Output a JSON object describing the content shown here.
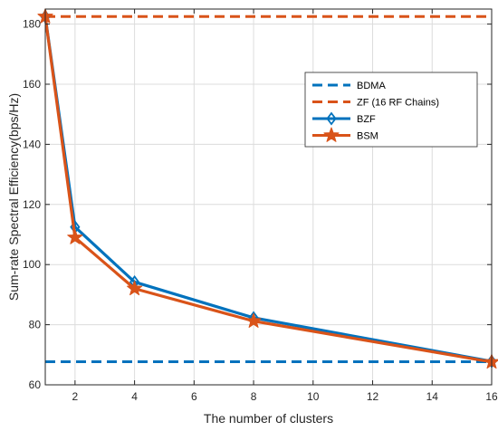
{
  "chart_data": {
    "type": "line",
    "title": "",
    "xlabel": "The number of clusters",
    "ylabel": "Sum-rate Spectral Efficiency(bps/Hz)",
    "xlim": [
      1,
      16
    ],
    "ylim": [
      60,
      185
    ],
    "xticks": [
      2,
      4,
      6,
      8,
      10,
      12,
      14,
      16
    ],
    "yticks": [
      60,
      80,
      100,
      120,
      140,
      160,
      180
    ],
    "grid": true,
    "legend_position": "top-right",
    "series": [
      {
        "name": "BDMA",
        "style": "dashed",
        "color": "#0072BD",
        "x": [
          1,
          16
        ],
        "y": [
          67.7,
          67.7
        ]
      },
      {
        "name": "ZF (16 RF Chains)",
        "style": "dashed",
        "color": "#D95319",
        "x": [
          1,
          16
        ],
        "y": [
          182.5,
          182.5
        ]
      },
      {
        "name": "BZF",
        "style": "solid",
        "marker": "diamond",
        "color": "#0072BD",
        "x": [
          1,
          2,
          4,
          8,
          16
        ],
        "y": [
          182.5,
          112.5,
          94.2,
          82.3,
          67.8
        ]
      },
      {
        "name": "BSM",
        "style": "solid",
        "marker": "star",
        "color": "#D95319",
        "x": [
          1,
          2,
          4,
          8,
          16
        ],
        "y": [
          182.5,
          109,
          92,
          81.2,
          67.6
        ]
      }
    ]
  }
}
